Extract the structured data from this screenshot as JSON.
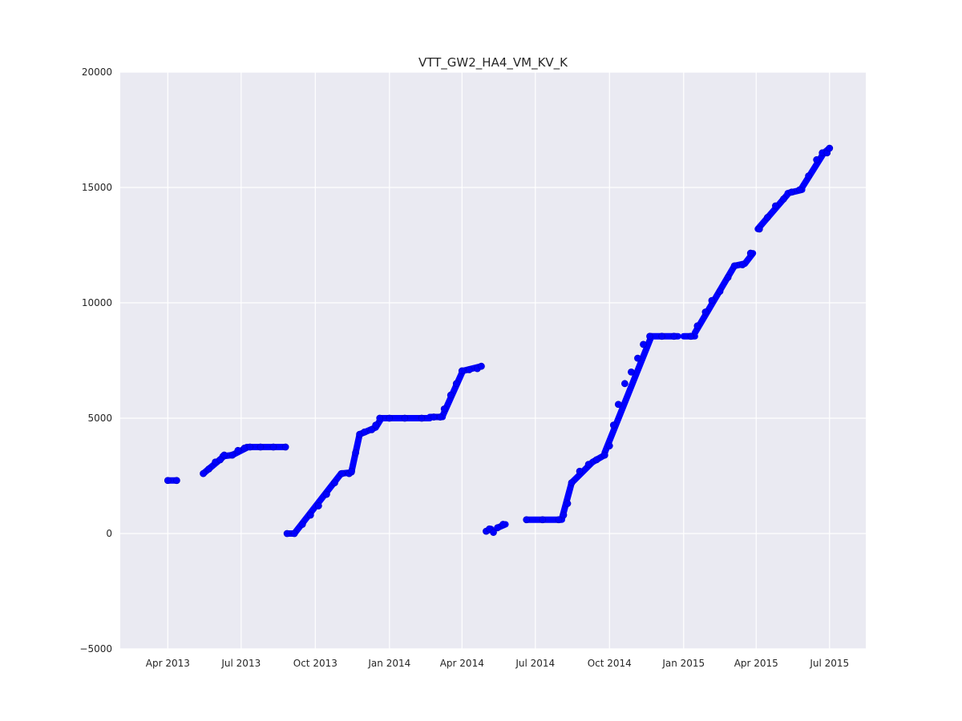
{
  "chart_data": {
    "type": "scatter",
    "title": "VTT_GW2_HA4_VM_KV_K",
    "xlabel": "",
    "ylabel": "",
    "x_type": "date",
    "xlim": [
      "2013-02-01",
      "2015-08-15"
    ],
    "ylim": [
      -5000,
      20000
    ],
    "x_ticks": [
      {
        "date": "2013-04-01",
        "label": "Apr 2013"
      },
      {
        "date": "2013-07-01",
        "label": "Jul 2013"
      },
      {
        "date": "2013-10-01",
        "label": "Oct 2013"
      },
      {
        "date": "2014-01-01",
        "label": "Jan 2014"
      },
      {
        "date": "2014-04-01",
        "label": "Apr 2014"
      },
      {
        "date": "2014-07-01",
        "label": "Jul 2014"
      },
      {
        "date": "2014-10-01",
        "label": "Oct 2014"
      },
      {
        "date": "2015-01-01",
        "label": "Jan 2015"
      },
      {
        "date": "2015-04-01",
        "label": "Apr 2015"
      },
      {
        "date": "2015-07-01",
        "label": "Jul 2015"
      }
    ],
    "y_ticks": [
      {
        "value": 20000,
        "label": "20000"
      },
      {
        "value": 15000,
        "label": "15000"
      },
      {
        "value": 10000,
        "label": "10000"
      },
      {
        "value": 5000,
        "label": "5000"
      },
      {
        "value": 0,
        "label": "0"
      },
      {
        "value": -5000,
        "label": "−5000"
      }
    ],
    "grid": true,
    "colors": {
      "background": "#eaeaf2",
      "grid": "#ffffff",
      "marker": "#0000ff",
      "marker_edge": "#0000cc"
    },
    "series": [
      {
        "points": [
          [
            "2013-04-01",
            2300
          ],
          [
            "2013-04-12",
            2300
          ],
          [
            "2013-05-15",
            2600
          ],
          [
            "2013-05-22",
            2800
          ],
          [
            "2013-05-30",
            3100
          ],
          [
            "2013-06-05",
            3200
          ],
          [
            "2013-06-10",
            3400
          ],
          [
            "2013-06-20",
            3400
          ],
          [
            "2013-06-27",
            3600
          ],
          [
            "2013-07-05",
            3700
          ],
          [
            "2013-07-12",
            3750
          ],
          [
            "2013-07-25",
            3750
          ],
          [
            "2013-08-10",
            3750
          ],
          [
            "2013-08-25",
            3750
          ],
          [
            "2013-08-27",
            0
          ],
          [
            "2013-09-05",
            0
          ],
          [
            "2013-09-15",
            400
          ],
          [
            "2013-09-25",
            800
          ],
          [
            "2013-10-05",
            1200
          ],
          [
            "2013-10-15",
            1700
          ],
          [
            "2013-10-25",
            2200
          ],
          [
            "2013-11-03",
            2600
          ],
          [
            "2013-11-12",
            2600
          ],
          [
            "2013-11-15",
            2700
          ],
          [
            "2013-11-20",
            3500
          ],
          [
            "2013-11-25",
            4300
          ],
          [
            "2013-12-01",
            4400
          ],
          [
            "2013-12-10",
            4500
          ],
          [
            "2013-12-15",
            4700
          ],
          [
            "2013-12-20",
            5000
          ],
          [
            "2014-01-01",
            5000
          ],
          [
            "2014-01-20",
            5000
          ],
          [
            "2014-02-10",
            5000
          ],
          [
            "2014-02-25",
            5050
          ],
          [
            "2014-03-05",
            5050
          ],
          [
            "2014-03-10",
            5400
          ],
          [
            "2014-03-18",
            6000
          ],
          [
            "2014-03-25",
            6500
          ],
          [
            "2014-04-01",
            7050
          ],
          [
            "2014-04-10",
            7100
          ],
          [
            "2014-04-20",
            7150
          ],
          [
            "2014-04-25",
            7250
          ],
          [
            "2014-05-01",
            100
          ],
          [
            "2014-05-05",
            200
          ],
          [
            "2014-05-10",
            50
          ],
          [
            "2014-05-15",
            250
          ],
          [
            "2014-05-22",
            400
          ],
          [
            "2014-06-20",
            600
          ],
          [
            "2014-07-10",
            600
          ],
          [
            "2014-07-30",
            600
          ],
          [
            "2014-08-05",
            800
          ],
          [
            "2014-08-10",
            1300
          ],
          [
            "2014-08-15",
            2200
          ],
          [
            "2014-08-25",
            2700
          ],
          [
            "2014-09-05",
            3000
          ],
          [
            "2014-09-15",
            3200
          ],
          [
            "2014-09-25",
            3400
          ],
          [
            "2014-10-01",
            3800
          ],
          [
            "2014-10-06",
            4700
          ],
          [
            "2014-10-12",
            5600
          ],
          [
            "2014-10-20",
            6500
          ],
          [
            "2014-10-28",
            7000
          ],
          [
            "2014-11-05",
            7600
          ],
          [
            "2014-11-12",
            8200
          ],
          [
            "2014-11-20",
            8550
          ],
          [
            "2014-12-05",
            8550
          ],
          [
            "2014-12-20",
            8550
          ],
          [
            "2015-01-10",
            8550
          ],
          [
            "2015-01-18",
            9000
          ],
          [
            "2015-01-28",
            9600
          ],
          [
            "2015-02-05",
            10100
          ],
          [
            "2015-02-15",
            10500
          ],
          [
            "2015-02-25",
            11100
          ],
          [
            "2015-03-05",
            11600
          ],
          [
            "2015-03-15",
            11650
          ],
          [
            "2015-03-25",
            12150
          ],
          [
            "2015-04-05",
            13200
          ],
          [
            "2015-04-15",
            13700
          ],
          [
            "2015-04-25",
            14200
          ],
          [
            "2015-05-05",
            14500
          ],
          [
            "2015-05-15",
            14800
          ],
          [
            "2015-05-25",
            14900
          ],
          [
            "2015-06-05",
            15500
          ],
          [
            "2015-06-15",
            16200
          ],
          [
            "2015-06-22",
            16500
          ],
          [
            "2015-06-28",
            16500
          ],
          [
            "2015-07-01",
            16700
          ]
        ],
        "segments": [
          [
            "2013-04-01",
            2300,
            "2013-04-12",
            2300
          ],
          [
            "2013-05-15",
            2600,
            "2013-06-08",
            3300
          ],
          [
            "2013-06-08",
            3350,
            "2013-06-20",
            3400
          ],
          [
            "2013-06-20",
            3400,
            "2013-07-08",
            3720
          ],
          [
            "2013-07-08",
            3750,
            "2013-08-25",
            3750
          ],
          [
            "2013-08-27",
            0,
            "2013-09-05",
            0
          ],
          [
            "2013-09-05",
            0,
            "2013-11-02",
            2600
          ],
          [
            "2013-11-02",
            2600,
            "2013-11-15",
            2650
          ],
          [
            "2013-11-15",
            2700,
            "2013-11-25",
            4300
          ],
          [
            "2013-11-25",
            4300,
            "2013-12-15",
            4600
          ],
          [
            "2013-12-15",
            4600,
            "2013-12-22",
            5000
          ],
          [
            "2013-12-22",
            5000,
            "2014-02-20",
            5000
          ],
          [
            "2014-02-20",
            5050,
            "2014-03-08",
            5050
          ],
          [
            "2014-03-08",
            5100,
            "2014-04-02",
            7050
          ],
          [
            "2014-04-02",
            7050,
            "2014-04-25",
            7250
          ],
          [
            "2014-05-01",
            100,
            "2014-05-07",
            200
          ],
          [
            "2014-05-15",
            250,
            "2014-05-25",
            400
          ],
          [
            "2014-06-20",
            600,
            "2014-08-03",
            600
          ],
          [
            "2014-08-03",
            650,
            "2014-08-15",
            2200
          ],
          [
            "2014-08-15",
            2200,
            "2014-09-10",
            3100
          ],
          [
            "2014-09-10",
            3100,
            "2014-09-25",
            3400
          ],
          [
            "2014-09-25",
            3500,
            "2014-11-22",
            8550
          ],
          [
            "2014-11-22",
            8550,
            "2014-12-25",
            8550
          ],
          [
            "2015-01-01",
            8550,
            "2015-01-15",
            8550
          ],
          [
            "2015-01-15",
            8700,
            "2015-03-05",
            11600
          ],
          [
            "2015-03-05",
            11600,
            "2015-03-18",
            11700
          ],
          [
            "2015-03-18",
            11700,
            "2015-03-28",
            12150
          ],
          [
            "2015-04-03",
            13200,
            "2015-05-10",
            14700
          ],
          [
            "2015-05-10",
            14750,
            "2015-05-28",
            14900
          ],
          [
            "2015-05-28",
            15000,
            "2015-06-24",
            16500
          ],
          [
            "2015-06-24",
            16500,
            "2015-07-01",
            16700
          ]
        ]
      }
    ]
  }
}
